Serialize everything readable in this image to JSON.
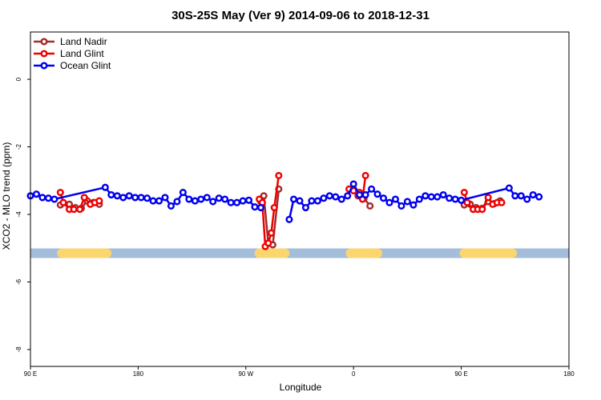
{
  "chart_data": {
    "type": "line",
    "title": "30S-25S May (Ver 9)   2014-09-06 to 2018-12-31",
    "xlabel": "Longitude",
    "ylabel": "XCO2 - MLO trend (ppm)",
    "xlim": [
      90,
      450
    ],
    "ylim": [
      -8.5,
      1.4
    ],
    "x_ticks": [
      {
        "value": 90,
        "label": "90 E"
      },
      {
        "value": 162,
        "label": "180"
      },
      {
        "value": 234,
        "label": "90 W"
      },
      {
        "value": 306,
        "label": "0"
      },
      {
        "value": 378,
        "label": "90 E"
      },
      {
        "value": 450,
        "label": "180"
      }
    ],
    "y_ticks": [
      0,
      -2,
      -4,
      -6,
      -8
    ],
    "grid": false,
    "legend_position": "top-left",
    "land_band": {
      "y": -5.15,
      "ocean_color": "#a4bddb",
      "land_color": "#fbd56e",
      "land_spans": [
        [
          111,
          141
        ],
        [
          243,
          260
        ],
        [
          304,
          318
        ],
        [
          320,
          322
        ],
        [
          380,
          412
        ]
      ]
    },
    "series": [
      {
        "name": "Land Nadir",
        "color": "#a52a2a",
        "segments": [
          [
            [
              110,
              -3.72
            ],
            [
              116,
              -3.7
            ],
            [
              120,
              -3.8
            ],
            [
              124,
              -3.82
            ],
            [
              128,
              -3.6
            ],
            [
              132,
              -3.65
            ],
            [
              136,
              -3.7
            ]
          ],
          [
            [
              244,
              -3.62
            ],
            [
              246,
              -3.45
            ],
            [
              249,
              -4.85
            ],
            [
              252,
              -4.9
            ],
            [
              256,
              -3.25
            ]
          ],
          [
            [
              305,
              -3.25
            ],
            [
              309,
              -3.45
            ],
            [
              313,
              -3.52
            ],
            [
              317,
              -3.75
            ]
          ],
          [
            [
              380,
              -3.72
            ],
            [
              384,
              -3.7
            ],
            [
              388,
              -3.8
            ],
            [
              392,
              -3.82
            ],
            [
              396,
              -3.62
            ],
            [
              400,
              -3.68
            ],
            [
              404,
              -3.6
            ]
          ]
        ]
      },
      {
        "name": "Land Glint",
        "color": "#ee0000",
        "segments": [
          [
            [
              110,
              -3.35
            ],
            [
              112,
              -3.65
            ],
            [
              116,
              -3.85
            ],
            [
              119,
              -3.85
            ],
            [
              123,
              -3.85
            ],
            [
              126,
              -3.5
            ],
            [
              130,
              -3.7
            ],
            [
              133,
              -3.65
            ],
            [
              136,
              -3.6
            ]
          ],
          [
            [
              243,
              -3.55
            ],
            [
              245,
              -3.65
            ],
            [
              247,
              -4.95
            ],
            [
              249,
              -4.85
            ],
            [
              251,
              -4.55
            ],
            [
              253,
              -3.8
            ],
            [
              256,
              -2.85
            ]
          ],
          [
            [
              303,
              -3.25
            ],
            [
              306,
              -3.3
            ],
            [
              310,
              -3.35
            ],
            [
              312,
              -3.55
            ],
            [
              314,
              -2.85
            ]
          ],
          [
            [
              380,
              -3.35
            ],
            [
              382,
              -3.65
            ],
            [
              386,
              -3.85
            ],
            [
              389,
              -3.85
            ],
            [
              392,
              -3.85
            ],
            [
              396,
              -3.5
            ],
            [
              399,
              -3.7
            ],
            [
              402,
              -3.65
            ],
            [
              405,
              -3.65
            ]
          ]
        ]
      },
      {
        "name": "Ocean Glint",
        "color": "#0000ee",
        "segments": [
          [
            [
              90,
              -3.45
            ],
            [
              94,
              -3.4
            ],
            [
              98,
              -3.5
            ],
            [
              102,
              -3.52
            ],
            [
              106,
              -3.55
            ],
            [
              140,
              -3.2
            ],
            [
              144,
              -3.42
            ],
            [
              148,
              -3.45
            ],
            [
              152,
              -3.5
            ],
            [
              156,
              -3.45
            ],
            [
              160,
              -3.5
            ],
            [
              164,
              -3.5
            ],
            [
              168,
              -3.52
            ],
            [
              172,
              -3.6
            ],
            [
              176,
              -3.6
            ],
            [
              180,
              -3.5
            ],
            [
              184,
              -3.75
            ],
            [
              188,
              -3.62
            ],
            [
              192,
              -3.35
            ],
            [
              196,
              -3.55
            ],
            [
              200,
              -3.6
            ],
            [
              204,
              -3.55
            ],
            [
              208,
              -3.5
            ],
            [
              212,
              -3.62
            ],
            [
              216,
              -3.52
            ],
            [
              220,
              -3.55
            ],
            [
              224,
              -3.65
            ],
            [
              228,
              -3.65
            ],
            [
              232,
              -3.6
            ],
            [
              236,
              -3.58
            ],
            [
              240,
              -3.78
            ],
            [
              244,
              -3.8
            ]
          ],
          [
            [
              263,
              -4.15
            ],
            [
              266,
              -3.55
            ],
            [
              270,
              -3.6
            ],
            [
              274,
              -3.8
            ],
            [
              278,
              -3.6
            ],
            [
              282,
              -3.6
            ],
            [
              286,
              -3.52
            ],
            [
              290,
              -3.45
            ],
            [
              294,
              -3.48
            ],
            [
              298,
              -3.55
            ],
            [
              302,
              -3.45
            ],
            [
              306,
              -3.1
            ],
            [
              310,
              -3.42
            ],
            [
              314,
              -3.42
            ],
            [
              318,
              -3.25
            ],
            [
              322,
              -3.4
            ],
            [
              326,
              -3.52
            ],
            [
              330,
              -3.65
            ],
            [
              334,
              -3.55
            ],
            [
              338,
              -3.75
            ],
            [
              342,
              -3.62
            ],
            [
              346,
              -3.72
            ],
            [
              350,
              -3.55
            ],
            [
              354,
              -3.45
            ],
            [
              358,
              -3.48
            ],
            [
              362,
              -3.48
            ],
            [
              366,
              -3.42
            ],
            [
              370,
              -3.52
            ],
            [
              374,
              -3.55
            ],
            [
              378,
              -3.58
            ],
            [
              410,
              -3.22
            ],
            [
              414,
              -3.45
            ],
            [
              418,
              -3.45
            ],
            [
              422,
              -3.55
            ],
            [
              426,
              -3.42
            ],
            [
              430,
              -3.48
            ]
          ]
        ]
      }
    ]
  }
}
